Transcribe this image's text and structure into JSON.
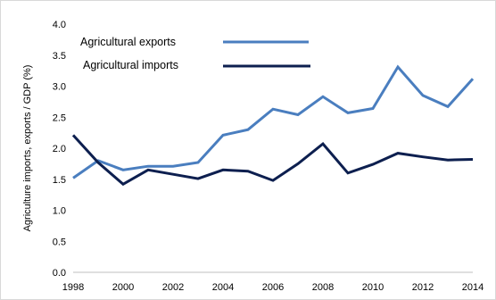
{
  "chart_data": {
    "type": "line",
    "title": "",
    "xlabel": "",
    "ylabel": "Agriculture imports, exports / GDP (%)",
    "x": [
      1998,
      1999,
      2000,
      2001,
      2002,
      2003,
      2004,
      2005,
      2006,
      2007,
      2008,
      2009,
      2010,
      2011,
      2012,
      2013,
      2014
    ],
    "xticks": [
      "1998",
      "2000",
      "2002",
      "2004",
      "2006",
      "2008",
      "2010",
      "2012",
      "2014"
    ],
    "xlim": [
      1998,
      2014
    ],
    "ylim": [
      0,
      4
    ],
    "yticks": [
      "0.0",
      "0.5",
      "1.0",
      "1.5",
      "2.0",
      "2.5",
      "3.0",
      "3.5",
      "4.0"
    ],
    "grid": false,
    "legend_position": "top-left",
    "series": [
      {
        "name": "Agricultural exports",
        "color": "#4a7ebf",
        "values": [
          1.52,
          1.8,
          1.65,
          1.71,
          1.71,
          1.77,
          2.21,
          2.3,
          2.63,
          2.54,
          2.83,
          2.57,
          2.64,
          3.31,
          2.85,
          2.67,
          3.12
        ]
      },
      {
        "name": "Agricultural imports",
        "color": "#0d1f4f",
        "values": [
          2.21,
          1.77,
          1.42,
          1.65,
          1.58,
          1.51,
          1.65,
          1.63,
          1.48,
          1.75,
          2.07,
          1.6,
          1.74,
          1.92,
          1.86,
          1.81,
          1.82
        ]
      }
    ]
  }
}
